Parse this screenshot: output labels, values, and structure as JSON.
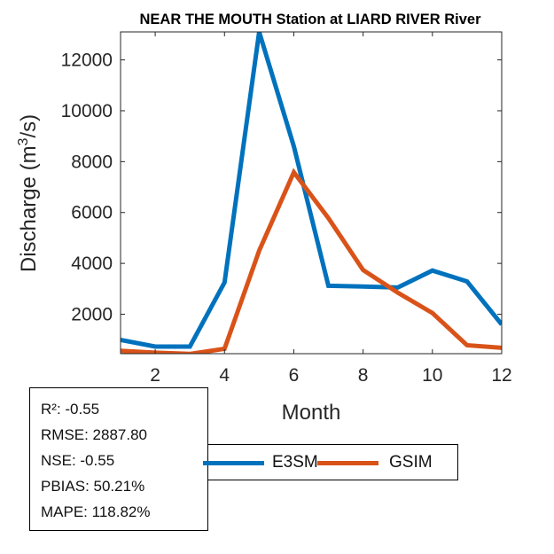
{
  "chart_data": {
    "type": "line",
    "title": "NEAR THE MOUTH  Station at  LIARD RIVER  River",
    "xlabel": "Month",
    "ylabel_main": "Discharge (m",
    "ylabel_sup": "3",
    "ylabel_end": "/s)",
    "xlim": [
      1,
      12
    ],
    "ylim": [
      450,
      13100
    ],
    "xticks": [
      2,
      4,
      6,
      8,
      10,
      12
    ],
    "yticks": [
      2000,
      4000,
      6000,
      8000,
      10000,
      12000
    ],
    "categories": [
      1,
      2,
      3,
      4,
      5,
      6,
      7,
      8,
      9,
      10,
      11,
      12
    ],
    "series": [
      {
        "name": "E3SM",
        "color": "#0072BD",
        "values": [
          990,
          730,
          730,
          3250,
          13100,
          8600,
          3120,
          3090,
          3050,
          3720,
          3290,
          1600
        ]
      },
      {
        "name": "GSIM",
        "color": "#D95319",
        "values": [
          560,
          490,
          440,
          640,
          4500,
          7580,
          5780,
          3740,
          2850,
          2050,
          780,
          680
        ]
      }
    ],
    "legend_position": "bottom"
  },
  "stats": {
    "r2": "R²: -0.55",
    "rmse": "RMSE: 2887.80",
    "nse": "NSE: -0.55",
    "pbias": "PBIAS: 50.21%",
    "mape": "MAPE: 118.82%"
  },
  "legend": {
    "e3sm_label": "E3SM",
    "gsim_label": "GSIM",
    "e3sm_color": "#0072BD",
    "gsim_color": "#D95319"
  }
}
